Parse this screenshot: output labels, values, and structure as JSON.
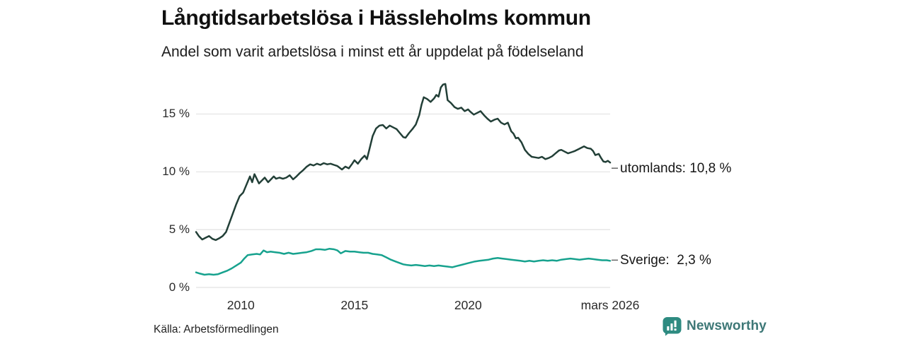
{
  "page": {
    "background": "#ffffff"
  },
  "footer": {
    "source": "Källa: Arbetsförmedlingen",
    "brand_name": "Newsworthy",
    "brand_icon": "newsworthy-chart-speech-bubble-icon",
    "brand_color": "#2e8b81",
    "brand_text_color": "#3e7877"
  },
  "chart_data": {
    "type": "line",
    "title": "Långtidsarbetslösa i Hässleholms kommun",
    "subtitle": "Andel som varit arbetslösa i minst ett år uppdelat på födelseland",
    "grid": true,
    "grid_color": "#e2e2e2",
    "label_connector_color": "#6f6f6f",
    "legend_position": "right-end-labels",
    "x_axis": {
      "range": [
        2008.03,
        2026.25
      ],
      "ticks": [
        {
          "value": 2010,
          "label": "2010"
        },
        {
          "value": 2015,
          "label": "2015"
        },
        {
          "value": 2020,
          "label": "2020"
        },
        {
          "value": 2026.25,
          "label": "mars 2026"
        }
      ]
    },
    "y_axis": {
      "unit": "%",
      "range": [
        0,
        17.9
      ],
      "ticks": [
        {
          "value": 0,
          "label": "0 %"
        },
        {
          "value": 5,
          "label": "5 %"
        },
        {
          "value": 10,
          "label": "10 %"
        },
        {
          "value": 15,
          "label": "15 %"
        }
      ]
    },
    "series": [
      {
        "name": "utomlands",
        "color": "#223f37",
        "end_label": "utomlands: 10,8 %",
        "end_value": 10.8,
        "points": [
          [
            2008.03,
            4.8
          ],
          [
            2008.15,
            4.45
          ],
          [
            2008.3,
            4.15
          ],
          [
            2008.45,
            4.3
          ],
          [
            2008.6,
            4.45
          ],
          [
            2008.75,
            4.2
          ],
          [
            2008.9,
            4.1
          ],
          [
            2009.05,
            4.25
          ],
          [
            2009.2,
            4.45
          ],
          [
            2009.35,
            4.8
          ],
          [
            2009.5,
            5.6
          ],
          [
            2009.65,
            6.4
          ],
          [
            2009.8,
            7.2
          ],
          [
            2009.95,
            7.9
          ],
          [
            2010.1,
            8.2
          ],
          [
            2010.25,
            8.9
          ],
          [
            2010.4,
            9.6
          ],
          [
            2010.5,
            9.1
          ],
          [
            2010.6,
            9.8
          ],
          [
            2010.7,
            9.4
          ],
          [
            2010.8,
            9.0
          ],
          [
            2010.95,
            9.3
          ],
          [
            2011.05,
            9.5
          ],
          [
            2011.2,
            9.1
          ],
          [
            2011.3,
            9.3
          ],
          [
            2011.45,
            9.6
          ],
          [
            2011.55,
            9.4
          ],
          [
            2011.7,
            9.5
          ],
          [
            2011.85,
            9.4
          ],
          [
            2012.0,
            9.5
          ],
          [
            2012.15,
            9.7
          ],
          [
            2012.3,
            9.35
          ],
          [
            2012.45,
            9.6
          ],
          [
            2012.6,
            9.9
          ],
          [
            2012.75,
            10.15
          ],
          [
            2012.9,
            10.45
          ],
          [
            2013.05,
            10.65
          ],
          [
            2013.2,
            10.55
          ],
          [
            2013.35,
            10.7
          ],
          [
            2013.5,
            10.6
          ],
          [
            2013.65,
            10.75
          ],
          [
            2013.8,
            10.65
          ],
          [
            2013.95,
            10.7
          ],
          [
            2014.1,
            10.6
          ],
          [
            2014.25,
            10.5
          ],
          [
            2014.45,
            10.2
          ],
          [
            2014.6,
            10.45
          ],
          [
            2014.75,
            10.3
          ],
          [
            2014.9,
            10.7
          ],
          [
            2015.0,
            11.0
          ],
          [
            2015.15,
            10.7
          ],
          [
            2015.3,
            11.1
          ],
          [
            2015.45,
            11.4
          ],
          [
            2015.55,
            11.1
          ],
          [
            2015.65,
            11.9
          ],
          [
            2015.8,
            13.1
          ],
          [
            2015.95,
            13.75
          ],
          [
            2016.1,
            14.0
          ],
          [
            2016.25,
            14.05
          ],
          [
            2016.4,
            13.75
          ],
          [
            2016.55,
            14.0
          ],
          [
            2016.7,
            13.85
          ],
          [
            2016.85,
            13.7
          ],
          [
            2017.0,
            13.35
          ],
          [
            2017.15,
            13.0
          ],
          [
            2017.25,
            12.95
          ],
          [
            2017.4,
            13.35
          ],
          [
            2017.55,
            13.7
          ],
          [
            2017.7,
            14.1
          ],
          [
            2017.85,
            14.9
          ],
          [
            2017.95,
            15.8
          ],
          [
            2018.05,
            16.45
          ],
          [
            2018.2,
            16.3
          ],
          [
            2018.35,
            16.05
          ],
          [
            2018.5,
            16.35
          ],
          [
            2018.6,
            16.65
          ],
          [
            2018.7,
            16.5
          ],
          [
            2018.8,
            17.3
          ],
          [
            2018.9,
            17.55
          ],
          [
            2019.0,
            17.6
          ],
          [
            2019.1,
            16.2
          ],
          [
            2019.25,
            15.95
          ],
          [
            2019.4,
            15.6
          ],
          [
            2019.55,
            15.45
          ],
          [
            2019.7,
            15.55
          ],
          [
            2019.85,
            15.25
          ],
          [
            2020.0,
            15.4
          ],
          [
            2020.1,
            15.2
          ],
          [
            2020.25,
            14.95
          ],
          [
            2020.4,
            15.1
          ],
          [
            2020.55,
            15.25
          ],
          [
            2020.7,
            14.9
          ],
          [
            2020.85,
            14.6
          ],
          [
            2021.0,
            14.35
          ],
          [
            2021.15,
            14.5
          ],
          [
            2021.3,
            14.6
          ],
          [
            2021.45,
            14.25
          ],
          [
            2021.6,
            14.1
          ],
          [
            2021.75,
            14.25
          ],
          [
            2021.9,
            13.5
          ],
          [
            2022.0,
            13.3
          ],
          [
            2022.1,
            12.9
          ],
          [
            2022.2,
            12.95
          ],
          [
            2022.35,
            12.55
          ],
          [
            2022.5,
            11.9
          ],
          [
            2022.65,
            11.55
          ],
          [
            2022.8,
            11.3
          ],
          [
            2022.95,
            11.25
          ],
          [
            2023.1,
            11.2
          ],
          [
            2023.25,
            11.3
          ],
          [
            2023.4,
            11.1
          ],
          [
            2023.55,
            11.2
          ],
          [
            2023.7,
            11.35
          ],
          [
            2023.85,
            11.6
          ],
          [
            2024.0,
            11.85
          ],
          [
            2024.1,
            11.9
          ],
          [
            2024.25,
            11.75
          ],
          [
            2024.4,
            11.6
          ],
          [
            2024.55,
            11.7
          ],
          [
            2024.7,
            11.8
          ],
          [
            2024.85,
            11.95
          ],
          [
            2025.0,
            12.1
          ],
          [
            2025.1,
            12.2
          ],
          [
            2025.25,
            12.05
          ],
          [
            2025.4,
            12.0
          ],
          [
            2025.5,
            11.8
          ],
          [
            2025.6,
            11.45
          ],
          [
            2025.75,
            11.55
          ],
          [
            2025.85,
            11.2
          ],
          [
            2025.95,
            10.9
          ],
          [
            2026.05,
            10.85
          ],
          [
            2026.15,
            10.95
          ],
          [
            2026.25,
            10.8
          ]
        ]
      },
      {
        "name": "Sverige",
        "color": "#17a28e",
        "end_label": "Sverige:  2,3 %",
        "end_value": 2.3,
        "points": [
          [
            2008.03,
            1.3
          ],
          [
            2008.2,
            1.2
          ],
          [
            2008.4,
            1.1
          ],
          [
            2008.6,
            1.15
          ],
          [
            2008.8,
            1.1
          ],
          [
            2009.0,
            1.15
          ],
          [
            2009.2,
            1.3
          ],
          [
            2009.4,
            1.45
          ],
          [
            2009.6,
            1.65
          ],
          [
            2009.8,
            1.9
          ],
          [
            2010.0,
            2.15
          ],
          [
            2010.15,
            2.5
          ],
          [
            2010.3,
            2.8
          ],
          [
            2010.5,
            2.85
          ],
          [
            2010.7,
            2.9
          ],
          [
            2010.85,
            2.85
          ],
          [
            2011.0,
            3.2
          ],
          [
            2011.15,
            3.05
          ],
          [
            2011.3,
            3.1
          ],
          [
            2011.5,
            3.05
          ],
          [
            2011.7,
            3.0
          ],
          [
            2011.9,
            2.9
          ],
          [
            2012.1,
            3.0
          ],
          [
            2012.3,
            2.9
          ],
          [
            2012.5,
            2.95
          ],
          [
            2012.7,
            3.0
          ],
          [
            2012.9,
            3.05
          ],
          [
            2013.1,
            3.15
          ],
          [
            2013.3,
            3.3
          ],
          [
            2013.5,
            3.3
          ],
          [
            2013.7,
            3.25
          ],
          [
            2013.9,
            3.35
          ],
          [
            2014.1,
            3.3
          ],
          [
            2014.25,
            3.2
          ],
          [
            2014.4,
            2.95
          ],
          [
            2014.6,
            3.15
          ],
          [
            2014.8,
            3.1
          ],
          [
            2015.0,
            3.1
          ],
          [
            2015.2,
            3.05
          ],
          [
            2015.4,
            3.0
          ],
          [
            2015.6,
            3.0
          ],
          [
            2015.8,
            2.9
          ],
          [
            2016.0,
            2.85
          ],
          [
            2016.2,
            2.8
          ],
          [
            2016.4,
            2.6
          ],
          [
            2016.6,
            2.4
          ],
          [
            2016.8,
            2.25
          ],
          [
            2017.0,
            2.1
          ],
          [
            2017.15,
            2.0
          ],
          [
            2017.3,
            1.95
          ],
          [
            2017.5,
            1.9
          ],
          [
            2017.7,
            1.95
          ],
          [
            2017.9,
            1.9
          ],
          [
            2018.1,
            1.85
          ],
          [
            2018.3,
            1.9
          ],
          [
            2018.5,
            1.85
          ],
          [
            2018.7,
            1.9
          ],
          [
            2018.9,
            1.85
          ],
          [
            2019.1,
            1.8
          ],
          [
            2019.3,
            1.75
          ],
          [
            2019.5,
            1.85
          ],
          [
            2019.7,
            1.95
          ],
          [
            2019.9,
            2.05
          ],
          [
            2020.1,
            2.15
          ],
          [
            2020.3,
            2.25
          ],
          [
            2020.5,
            2.3
          ],
          [
            2020.7,
            2.35
          ],
          [
            2020.9,
            2.4
          ],
          [
            2021.1,
            2.5
          ],
          [
            2021.3,
            2.55
          ],
          [
            2021.5,
            2.5
          ],
          [
            2021.7,
            2.45
          ],
          [
            2021.9,
            2.4
          ],
          [
            2022.1,
            2.35
          ],
          [
            2022.3,
            2.3
          ],
          [
            2022.5,
            2.25
          ],
          [
            2022.7,
            2.3
          ],
          [
            2022.9,
            2.25
          ],
          [
            2023.1,
            2.3
          ],
          [
            2023.3,
            2.35
          ],
          [
            2023.5,
            2.3
          ],
          [
            2023.7,
            2.35
          ],
          [
            2023.9,
            2.3
          ],
          [
            2024.1,
            2.4
          ],
          [
            2024.3,
            2.45
          ],
          [
            2024.5,
            2.5
          ],
          [
            2024.7,
            2.45
          ],
          [
            2024.9,
            2.4
          ],
          [
            2025.1,
            2.45
          ],
          [
            2025.3,
            2.5
          ],
          [
            2025.5,
            2.45
          ],
          [
            2025.7,
            2.4
          ],
          [
            2025.9,
            2.35
          ],
          [
            2026.1,
            2.35
          ],
          [
            2026.25,
            2.3
          ]
        ]
      }
    ]
  }
}
